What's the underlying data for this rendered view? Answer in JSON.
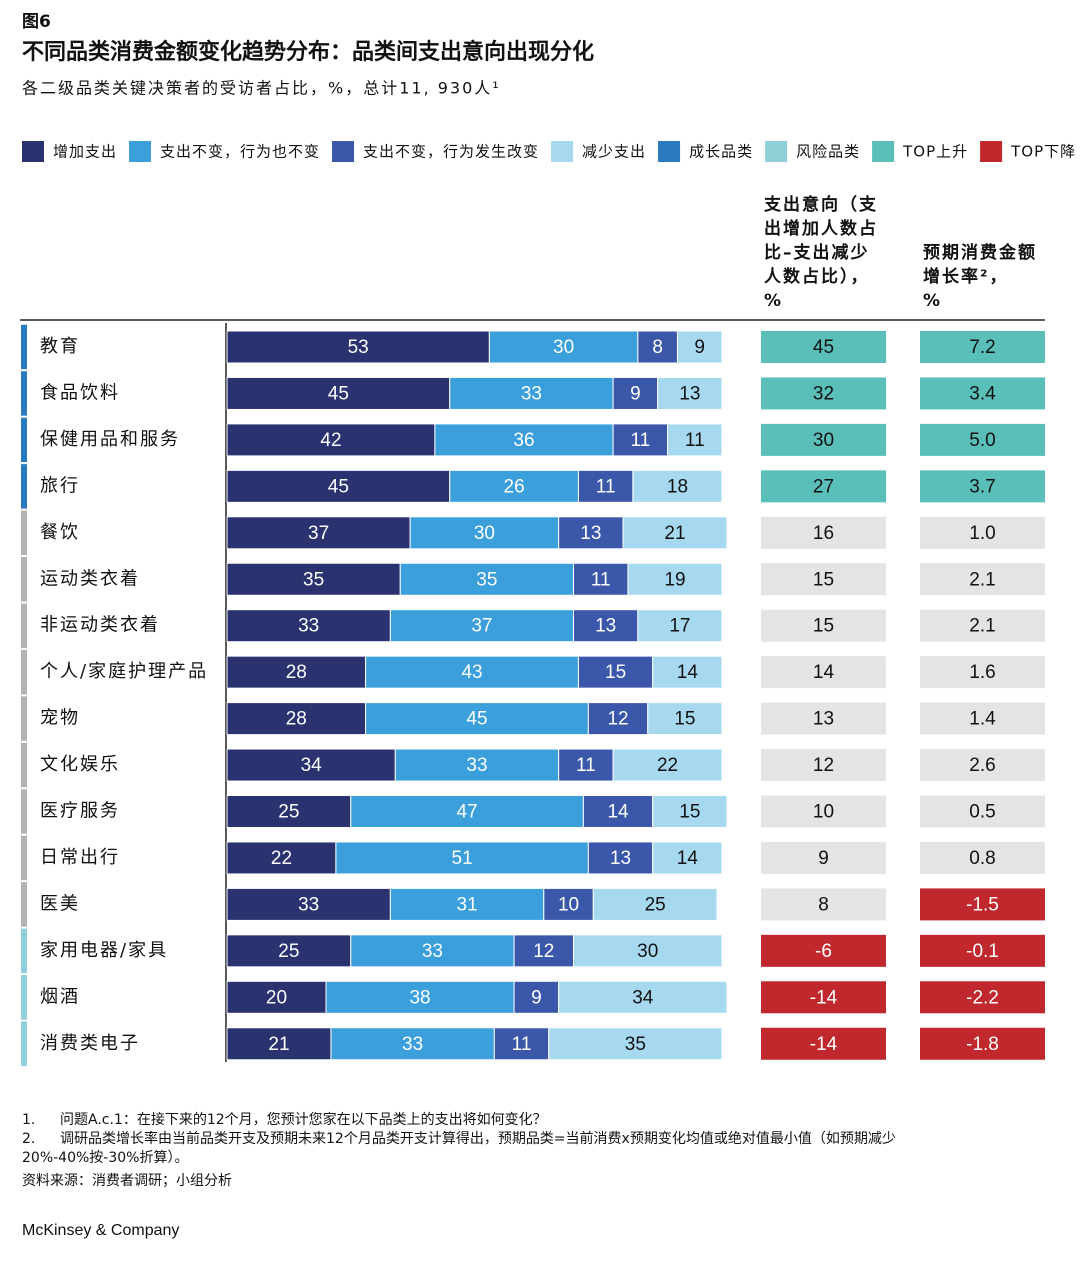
{
  "figure_label": "图6",
  "chart_data": {
    "type": "stacked-bar-h",
    "title": "不同品类消费金额变化趋势分布：品类间支出意向出现分化",
    "subtitle": "各二级品类关键决策者的受访者占比，%，总计11, 930人¹",
    "categories": [
      "教育",
      "食品饮料",
      "保健用品和服务",
      "旅行",
      "餐饮",
      "运动类衣着",
      "非运动类衣着",
      "个人/家庭护理产品",
      "宠物",
      "文化娱乐",
      "医疗服务",
      "日常出行",
      "医美",
      "家用电器/家具",
      "烟酒",
      "消费类电子"
    ],
    "group_colors": [
      "#2a7ac0",
      "#2a7ac0",
      "#2a7ac0",
      "#2a7ac0",
      "#b3b3b3",
      "#b3b3b3",
      "#b3b3b3",
      "#b3b3b3",
      "#b3b3b3",
      "#b3b3b3",
      "#b3b3b3",
      "#b3b3b3",
      "#b3b3b3",
      "#8fd0d8",
      "#8fd0d8",
      "#8fd0d8"
    ],
    "xlim": [
      0,
      100
    ],
    "series": [
      {
        "name": "增加支出",
        "color": "#2a3370",
        "values": [
          53,
          45,
          42,
          45,
          37,
          35,
          33,
          28,
          28,
          34,
          25,
          22,
          33,
          25,
          20,
          21
        ]
      },
      {
        "name": "支出不变，行为也不变",
        "color": "#3a9fdb",
        "values": [
          30,
          33,
          36,
          26,
          30,
          35,
          37,
          43,
          45,
          33,
          47,
          51,
          31,
          33,
          38,
          33
        ]
      },
      {
        "name": "支出不变，行为发生改变",
        "color": "#3b57aa",
        "values": [
          8,
          9,
          11,
          11,
          13,
          11,
          13,
          15,
          12,
          11,
          14,
          13,
          10,
          12,
          9,
          11
        ]
      },
      {
        "name": "减少支出",
        "color": "#a6d9f0",
        "values": [
          9,
          13,
          11,
          18,
          21,
          19,
          17,
          14,
          15,
          22,
          15,
          14,
          25,
          30,
          34,
          35
        ]
      }
    ],
    "legend_extra": [
      {
        "name": "成长品类",
        "color": "#2a7ac0"
      },
      {
        "name": "风险品类",
        "color": "#8fd0d8"
      },
      {
        "name": "TOP上升",
        "color": "#5bbfb9"
      },
      {
        "name": "TOP下降",
        "color": "#c0282d"
      }
    ],
    "columns": [
      {
        "header": [
          "支出意向（支",
          "出增加人数占",
          "比–支出减少",
          "人数占比），",
          "%"
        ],
        "values": [
          45,
          32,
          30,
          27,
          16,
          15,
          15,
          14,
          13,
          12,
          10,
          9,
          8,
          -6,
          -14,
          -14
        ],
        "colors": [
          "#5bbfb9",
          "#5bbfb9",
          "#5bbfb9",
          "#5bbfb9",
          "#e4e4e4",
          "#e4e4e4",
          "#e4e4e4",
          "#e4e4e4",
          "#e4e4e4",
          "#e4e4e4",
          "#e4e4e4",
          "#e4e4e4",
          "#e4e4e4",
          "#c0282d",
          "#c0282d",
          "#c0282d"
        ]
      },
      {
        "header": [
          "预期消费金额",
          "增长率²，",
          "%"
        ],
        "values": [
          7.2,
          3.4,
          5.0,
          3.7,
          1.0,
          2.1,
          2.1,
          1.6,
          1.4,
          2.6,
          0.5,
          0.8,
          -1.5,
          -0.1,
          -2.2,
          -1.8
        ],
        "value_labels": [
          "7.2",
          "3.4",
          "5.0",
          "3.7",
          "1.0",
          "2.1",
          "2.1",
          "1.6",
          "1.4",
          "2.6",
          "0.5",
          "0.8",
          "-1.5",
          "-0.1",
          "-2.2",
          "-1.8"
        ],
        "colors": [
          "#5bbfb9",
          "#5bbfb9",
          "#5bbfb9",
          "#5bbfb9",
          "#e4e4e4",
          "#e4e4e4",
          "#e4e4e4",
          "#e4e4e4",
          "#e4e4e4",
          "#e4e4e4",
          "#e4e4e4",
          "#e4e4e4",
          "#c0282d",
          "#c0282d",
          "#c0282d",
          "#c0282d"
        ]
      }
    ],
    "footnotes": [
      {
        "number": "1.",
        "lines": [
          "问题A.c.1：在接下来的12个月，您预计您家在以下品类上的支出将如何变化？"
        ]
      },
      {
        "number": "2.",
        "lines": [
          "调研品类增长率由当前品类开支及预期未来12个月品类开支计算得出，预期品类=当前消费x预期变化均值或绝对值最小值（如预期减少",
          "20%-40%按-30%折算）。"
        ]
      }
    ],
    "source": "资料来源：消费者调研；小组分析"
  },
  "brand": "McKinsey & Company"
}
